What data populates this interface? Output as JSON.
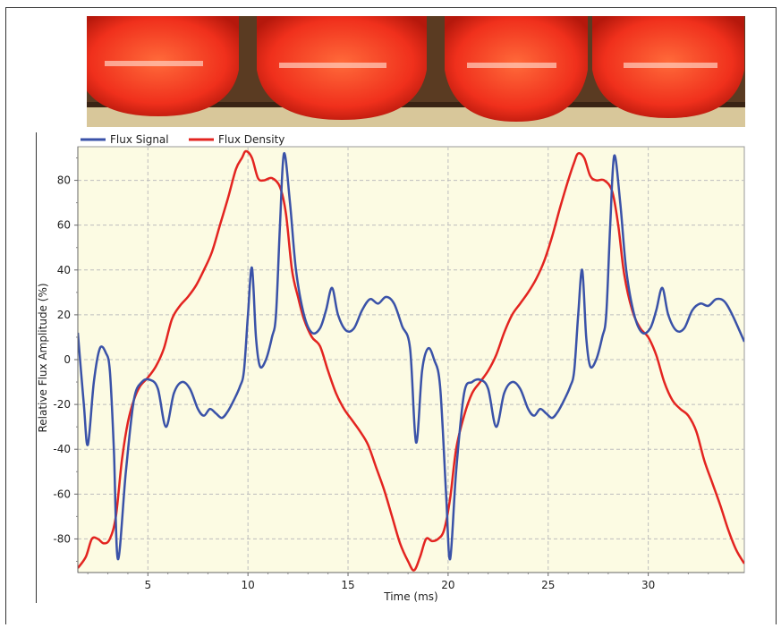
{
  "chart_data": {
    "type": "line",
    "title": "",
    "xlabel": "Time (ms)",
    "ylabel": "Relative Flux Amplitude (%)",
    "xlim": [
      1.5,
      34.8
    ],
    "ylim": [
      -95,
      95
    ],
    "x_ticks": [
      5,
      10,
      15,
      20,
      25,
      30
    ],
    "y_ticks": [
      -80,
      -60,
      -40,
      -20,
      0,
      20,
      40,
      60,
      80
    ],
    "grid": true,
    "legend": "top-left",
    "background_color": "#fcfbe3",
    "series": [
      {
        "name": "Flux Signal",
        "color": "#3a52a8",
        "points": [
          [
            1.5,
            12
          ],
          [
            1.8,
            -20
          ],
          [
            2.0,
            -38
          ],
          [
            2.3,
            -10
          ],
          [
            2.6,
            5
          ],
          [
            2.9,
            3
          ],
          [
            3.1,
            -5
          ],
          [
            3.3,
            -40
          ],
          [
            3.5,
            -89
          ],
          [
            3.9,
            -50
          ],
          [
            4.3,
            -18
          ],
          [
            4.7,
            -10
          ],
          [
            5.1,
            -9
          ],
          [
            5.5,
            -13
          ],
          [
            5.9,
            -30
          ],
          [
            6.3,
            -15
          ],
          [
            6.7,
            -10
          ],
          [
            7.1,
            -13
          ],
          [
            7.5,
            -22
          ],
          [
            7.8,
            -25
          ],
          [
            8.1,
            -22
          ],
          [
            8.4,
            -24
          ],
          [
            8.7,
            -26
          ],
          [
            9.0,
            -23
          ],
          [
            9.3,
            -18
          ],
          [
            9.6,
            -12
          ],
          [
            9.8,
            -5
          ],
          [
            10.0,
            20
          ],
          [
            10.2,
            41
          ],
          [
            10.4,
            10
          ],
          [
            10.6,
            -3
          ],
          [
            10.9,
            0
          ],
          [
            11.2,
            10
          ],
          [
            11.4,
            20
          ],
          [
            11.6,
            60
          ],
          [
            11.8,
            92
          ],
          [
            12.1,
            70
          ],
          [
            12.4,
            40
          ],
          [
            12.8,
            20
          ],
          [
            13.2,
            12
          ],
          [
            13.6,
            14
          ],
          [
            13.9,
            22
          ],
          [
            14.2,
            32
          ],
          [
            14.5,
            20
          ],
          [
            14.9,
            13
          ],
          [
            15.3,
            14
          ],
          [
            15.7,
            22
          ],
          [
            16.1,
            27
          ],
          [
            16.5,
            25
          ],
          [
            16.9,
            28
          ],
          [
            17.3,
            25
          ],
          [
            17.7,
            15
          ],
          [
            18.1,
            5
          ],
          [
            18.4,
            -37
          ],
          [
            18.7,
            -5
          ],
          [
            19.0,
            5
          ],
          [
            19.3,
            0
          ],
          [
            19.6,
            -12
          ],
          [
            19.9,
            -60
          ],
          [
            20.1,
            -89
          ],
          [
            20.4,
            -50
          ],
          [
            20.8,
            -15
          ],
          [
            21.2,
            -10
          ],
          [
            21.6,
            -9
          ],
          [
            22.0,
            -13
          ],
          [
            22.4,
            -30
          ],
          [
            22.8,
            -15
          ],
          [
            23.2,
            -10
          ],
          [
            23.6,
            -13
          ],
          [
            24.0,
            -22
          ],
          [
            24.3,
            -25
          ],
          [
            24.6,
            -22
          ],
          [
            24.9,
            -24
          ],
          [
            25.2,
            -26
          ],
          [
            25.5,
            -23
          ],
          [
            25.8,
            -18
          ],
          [
            26.1,
            -12
          ],
          [
            26.3,
            -5
          ],
          [
            26.5,
            20
          ],
          [
            26.7,
            40
          ],
          [
            26.9,
            10
          ],
          [
            27.1,
            -3
          ],
          [
            27.4,
            0
          ],
          [
            27.7,
            10
          ],
          [
            27.9,
            20
          ],
          [
            28.1,
            60
          ],
          [
            28.3,
            91
          ],
          [
            28.6,
            70
          ],
          [
            28.9,
            40
          ],
          [
            29.3,
            20
          ],
          [
            29.7,
            12
          ],
          [
            30.1,
            14
          ],
          [
            30.4,
            22
          ],
          [
            30.7,
            32
          ],
          [
            31.0,
            20
          ],
          [
            31.4,
            13
          ],
          [
            31.8,
            14
          ],
          [
            32.2,
            22
          ],
          [
            32.6,
            25
          ],
          [
            33.0,
            24
          ],
          [
            33.4,
            27
          ],
          [
            33.8,
            26
          ],
          [
            34.2,
            20
          ],
          [
            34.8,
            8
          ]
        ]
      },
      {
        "name": "Flux Density",
        "color": "#e32420",
        "points": [
          [
            1.5,
            -93
          ],
          [
            1.9,
            -88
          ],
          [
            2.2,
            -80
          ],
          [
            2.5,
            -80
          ],
          [
            2.8,
            -82
          ],
          [
            3.1,
            -80
          ],
          [
            3.4,
            -70
          ],
          [
            3.7,
            -45
          ],
          [
            4.0,
            -28
          ],
          [
            4.3,
            -18
          ],
          [
            4.6,
            -12
          ],
          [
            5.0,
            -8
          ],
          [
            5.4,
            -3
          ],
          [
            5.8,
            5
          ],
          [
            6.2,
            18
          ],
          [
            6.6,
            24
          ],
          [
            7.0,
            28
          ],
          [
            7.4,
            33
          ],
          [
            7.8,
            40
          ],
          [
            8.2,
            48
          ],
          [
            8.6,
            60
          ],
          [
            9.0,
            72
          ],
          [
            9.4,
            85
          ],
          [
            9.7,
            90
          ],
          [
            9.9,
            93
          ],
          [
            10.2,
            90
          ],
          [
            10.5,
            81
          ],
          [
            10.8,
            80
          ],
          [
            11.2,
            81
          ],
          [
            11.6,
            77
          ],
          [
            11.9,
            65
          ],
          [
            12.2,
            40
          ],
          [
            12.5,
            28
          ],
          [
            12.8,
            18
          ],
          [
            13.2,
            10
          ],
          [
            13.6,
            6
          ],
          [
            14.0,
            -5
          ],
          [
            14.4,
            -15
          ],
          [
            14.8,
            -22
          ],
          [
            15.2,
            -27
          ],
          [
            15.6,
            -32
          ],
          [
            16.0,
            -38
          ],
          [
            16.4,
            -48
          ],
          [
            16.8,
            -58
          ],
          [
            17.2,
            -70
          ],
          [
            17.6,
            -82
          ],
          [
            18.0,
            -90
          ],
          [
            18.3,
            -94
          ],
          [
            18.6,
            -88
          ],
          [
            18.9,
            -80
          ],
          [
            19.2,
            -81
          ],
          [
            19.5,
            -80
          ],
          [
            19.8,
            -76
          ],
          [
            20.1,
            -62
          ],
          [
            20.4,
            -40
          ],
          [
            20.8,
            -25
          ],
          [
            21.2,
            -15
          ],
          [
            21.6,
            -10
          ],
          [
            22.0,
            -5
          ],
          [
            22.4,
            2
          ],
          [
            22.8,
            12
          ],
          [
            23.2,
            20
          ],
          [
            23.6,
            25
          ],
          [
            24.0,
            30
          ],
          [
            24.4,
            36
          ],
          [
            24.8,
            44
          ],
          [
            25.2,
            55
          ],
          [
            25.6,
            68
          ],
          [
            26.0,
            80
          ],
          [
            26.3,
            88
          ],
          [
            26.5,
            92
          ],
          [
            26.8,
            90
          ],
          [
            27.1,
            82
          ],
          [
            27.4,
            80
          ],
          [
            27.8,
            80
          ],
          [
            28.2,
            75
          ],
          [
            28.5,
            60
          ],
          [
            28.8,
            38
          ],
          [
            29.2,
            22
          ],
          [
            29.6,
            14
          ],
          [
            30.0,
            10
          ],
          [
            30.4,
            2
          ],
          [
            30.8,
            -10
          ],
          [
            31.2,
            -18
          ],
          [
            31.6,
            -22
          ],
          [
            32.0,
            -25
          ],
          [
            32.4,
            -32
          ],
          [
            32.8,
            -45
          ],
          [
            33.2,
            -55
          ],
          [
            33.6,
            -65
          ],
          [
            34.0,
            -76
          ],
          [
            34.4,
            -85
          ],
          [
            34.8,
            -91
          ]
        ]
      }
    ]
  },
  "photo": {
    "description_icon": "red-coin-rolls-photo"
  }
}
